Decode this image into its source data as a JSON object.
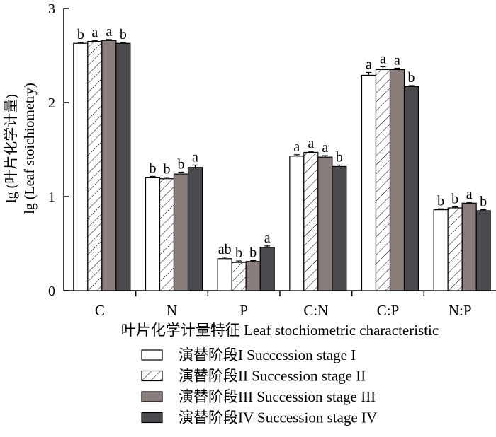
{
  "chart_data": {
    "type": "bar",
    "xlabel": "叶片化学计量特征 Leaf stochiometric characteristic",
    "ylabel_line1": "lg (叶片化学计量)",
    "ylabel_line2": "lg (Leaf stoichiometry)",
    "ylim": [
      0,
      3
    ],
    "yticks": [
      0,
      1,
      2,
      3
    ],
    "categories": [
      "C",
      "N",
      "P",
      "C:N",
      "C:P",
      "N:P"
    ],
    "series": [
      {
        "name": "演替阶段I Succession stage I",
        "pattern": "white",
        "values": [
          2.63,
          1.2,
          0.34,
          1.43,
          2.29,
          0.86
        ],
        "errors": [
          0.01,
          0.015,
          0.015,
          0.015,
          0.03,
          0.01
        ],
        "letters": [
          "b",
          "b",
          "ab",
          "a",
          "a",
          "b"
        ]
      },
      {
        "name": "演替阶段II Succession stage II",
        "pattern": "hatch",
        "values": [
          2.65,
          1.19,
          0.3,
          1.47,
          2.35,
          0.88
        ],
        "errors": [
          0.01,
          0.015,
          0.015,
          0.01,
          0.03,
          0.01
        ],
        "letters": [
          "a",
          "b",
          "b",
          "a",
          "a",
          "b"
        ]
      },
      {
        "name": "演替阶段III Succession stage III",
        "pattern": "gray",
        "values": [
          2.66,
          1.24,
          0.31,
          1.42,
          2.35,
          0.93
        ],
        "errors": [
          0.01,
          0.02,
          0.01,
          0.015,
          0.015,
          0.01
        ],
        "letters": [
          "a",
          "b",
          "b",
          "a",
          "a",
          "a"
        ]
      },
      {
        "name": "演替阶段IV Succession stage IV",
        "pattern": "dark",
        "values": [
          2.63,
          1.31,
          0.46,
          1.32,
          2.17,
          0.85
        ],
        "errors": [
          0.01,
          0.025,
          0.015,
          0.015,
          0.01,
          0.01
        ],
        "letters": [
          "b",
          "a",
          "a",
          "b",
          "b",
          "b"
        ]
      }
    ],
    "colors": {
      "white": "#ffffff",
      "gray": "#8a7e7c",
      "dark": "#4a4a4e",
      "stroke": "#000000"
    },
    "legend_position": "bottom-center"
  }
}
